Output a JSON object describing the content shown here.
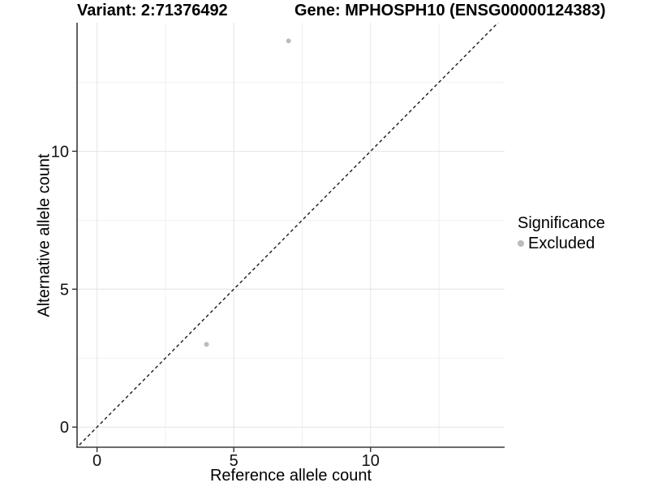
{
  "page": {
    "background": "#ffffff"
  },
  "chart_data": {
    "type": "scatter",
    "title_left": "Variant: 2:71376492",
    "title_right": "Gene: MPHOSPH10 (ENSG00000124383)",
    "xlabel": "Reference allele count",
    "ylabel": "Alternative allele count",
    "xlim": [
      -0.73,
      14.9
    ],
    "ylim": [
      -0.73,
      14.66
    ],
    "x_major_ticks": [
      0,
      5,
      10
    ],
    "y_major_ticks": [
      0,
      5,
      10
    ],
    "x_minor_gridlines": [
      2.5,
      7.5,
      12.5
    ],
    "y_minor_gridlines": [
      2.5,
      7.5,
      12.5
    ],
    "grid": true,
    "series": [
      {
        "name": "Excluded",
        "color": "#bcbcbc",
        "points": [
          {
            "x": 4,
            "y": 3
          },
          {
            "x": 7,
            "y": 14
          }
        ]
      }
    ],
    "reference_line": {
      "type": "identity",
      "style": "dashed",
      "color": "#1a1a1a"
    },
    "legend": {
      "title": "Significance",
      "position": "right",
      "items": [
        {
          "label": "Excluded",
          "color": "#bcbcbc"
        }
      ]
    },
    "colors": {
      "grid_major": "#e4e4e4",
      "grid_minor": "#f0f0f0",
      "axis_line": "#3a3a3a",
      "tick_mark": "#333333",
      "tick_label": "#111111",
      "panel_background": "#ffffff"
    },
    "tick_label_size": 20,
    "point_radius": 3
  }
}
